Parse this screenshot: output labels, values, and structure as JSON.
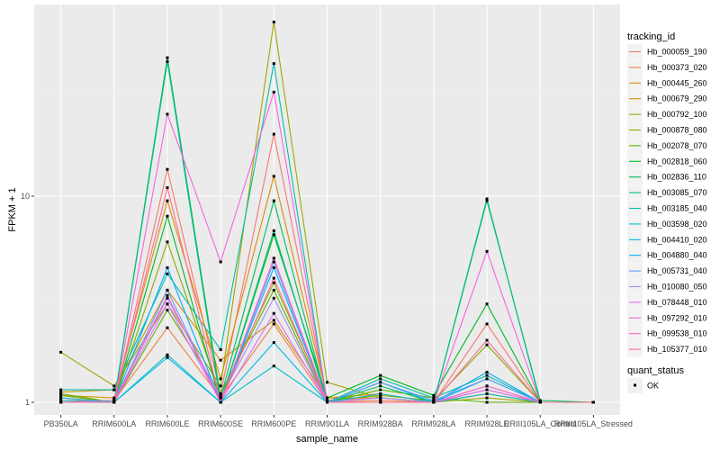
{
  "chart_data": {
    "type": "line",
    "xlabel": "sample_name",
    "ylabel": "FPKM + 1",
    "y_scale": "log10",
    "ylim": [
      0.9,
      90
    ],
    "y_ticks": [
      {
        "value": 1,
        "label": "1"
      },
      {
        "value": 10,
        "label": "10"
      }
    ],
    "grid": true,
    "legend_position": "right",
    "categories": [
      "PB350LA",
      "RRIM600LA",
      "RRIM600LE",
      "RRIM600SE",
      "RRIM600PE",
      "RRIM901LA",
      "RRIM928BA",
      "RRIM928LA",
      "RRIM928LE",
      "RRIII105LA_Control",
      "RRIII105LA_Stressed"
    ],
    "legend_title": "tracking_id",
    "shape_legend": {
      "title": "quant_status",
      "items": [
        "OK"
      ]
    },
    "series": [
      {
        "name": "Hb_000059_190",
        "color": "#F8766D",
        "values": [
          1.05,
          1.0,
          13.5,
          1.1,
          20.0,
          1.02,
          1.05,
          1.0,
          2.4,
          1.0,
          1.0
        ]
      },
      {
        "name": "Hb_000373_020",
        "color": "#EE8044",
        "values": [
          1.02,
          1.02,
          2.3,
          1.05,
          2.4,
          1.0,
          1.02,
          1.0,
          1.1,
          1.0,
          1.0
        ]
      },
      {
        "name": "Hb_000445_260",
        "color": "#E08B00",
        "values": [
          1.08,
          1.05,
          9.5,
          1.3,
          12.5,
          1.05,
          1.1,
          1.0,
          1.15,
          1.0,
          1.0
        ]
      },
      {
        "name": "Hb_000679_290",
        "color": "#CF9400",
        "values": [
          1.12,
          1.15,
          3.5,
          1.6,
          2.5,
          1.05,
          1.05,
          1.0,
          1.1,
          1.0,
          1.0
        ]
      },
      {
        "name": "Hb_000792_100",
        "color": "#A3A500",
        "values": [
          1.75,
          1.2,
          3.0,
          1.2,
          70.0,
          1.25,
          1.05,
          1.0,
          1.05,
          1.0,
          1.0
        ]
      },
      {
        "name": "Hb_000878_080",
        "color": "#85AD00",
        "values": [
          1.08,
          1.0,
          6.0,
          1.08,
          3.8,
          1.02,
          1.08,
          1.02,
          1.9,
          1.0,
          1.0
        ]
      },
      {
        "name": "Hb_002078_070",
        "color": "#5BB300",
        "values": [
          1.1,
          1.0,
          2.8,
          1.1,
          3.5,
          1.0,
          1.15,
          1.05,
          1.0,
          1.0,
          1.0
        ]
      },
      {
        "name": "Hb_002818_060",
        "color": "#00B81F",
        "values": [
          1.0,
          1.0,
          8.0,
          1.0,
          6.5,
          1.05,
          1.35,
          1.08,
          3.0,
          1.0,
          1.0
        ]
      },
      {
        "name": "Hb_002836_110",
        "color": "#00BC59",
        "values": [
          1.0,
          1.0,
          47.0,
          1.05,
          9.5,
          1.0,
          1.2,
          1.0,
          9.5,
          1.02,
          1.0
        ]
      },
      {
        "name": "Hb_003085_070",
        "color": "#00BF7D",
        "values": [
          1.0,
          1.0,
          45.0,
          1.0,
          6.8,
          1.0,
          1.0,
          1.0,
          9.7,
          1.0,
          1.0
        ]
      },
      {
        "name": "Hb_003185_040",
        "color": "#00C0A7",
        "values": [
          1.15,
          1.15,
          4.2,
          1.8,
          44.0,
          1.0,
          1.3,
          1.05,
          1.35,
          1.0,
          1.0
        ]
      },
      {
        "name": "Hb_003598_020",
        "color": "#00BECB",
        "values": [
          1.02,
          1.0,
          1.7,
          1.0,
          1.5,
          1.0,
          1.1,
          1.0,
          1.1,
          1.0,
          1.0
        ]
      },
      {
        "name": "Hb_004410_020",
        "color": "#00B8E7",
        "values": [
          1.05,
          1.0,
          1.65,
          1.0,
          1.95,
          1.0,
          1.25,
          1.0,
          1.3,
          1.0,
          1.0
        ]
      },
      {
        "name": "Hb_004880_040",
        "color": "#00ADFA",
        "values": [
          1.0,
          1.0,
          4.5,
          1.0,
          4.5,
          1.0,
          1.0,
          1.0,
          1.4,
          1.0,
          1.0
        ]
      },
      {
        "name": "Hb_005731_040",
        "color": "#619CFF",
        "values": [
          1.0,
          1.0,
          3.5,
          1.0,
          4.8,
          1.0,
          1.25,
          1.02,
          1.3,
          1.0,
          1.0
        ]
      },
      {
        "name": "Hb_010080_050",
        "color": "#A58AFF",
        "values": [
          1.0,
          1.02,
          3.2,
          1.05,
          3.2,
          1.0,
          1.05,
          1.0,
          1.2,
          1.0,
          1.0
        ]
      },
      {
        "name": "Hb_078448_010",
        "color": "#DB72FB",
        "values": [
          1.0,
          1.0,
          3.0,
          1.0,
          2.7,
          1.0,
          1.0,
          1.0,
          1.15,
          1.0,
          1.0
        ]
      },
      {
        "name": "Hb_097292_010",
        "color": "#F564E3",
        "values": [
          1.0,
          1.0,
          25.0,
          4.8,
          32.0,
          1.0,
          1.0,
          1.0,
          5.4,
          1.0,
          1.0
        ]
      },
      {
        "name": "Hb_099538_010",
        "color": "#FF61C3",
        "values": [
          1.0,
          1.0,
          3.3,
          1.0,
          5.0,
          1.0,
          1.0,
          1.0,
          1.2,
          1.0,
          1.0
        ]
      },
      {
        "name": "Hb_105377_010",
        "color": "#FF6C91",
        "values": [
          1.0,
          1.0,
          11.0,
          1.0,
          4.0,
          1.0,
          1.0,
          1.0,
          2.0,
          1.0,
          1.0
        ]
      }
    ]
  }
}
